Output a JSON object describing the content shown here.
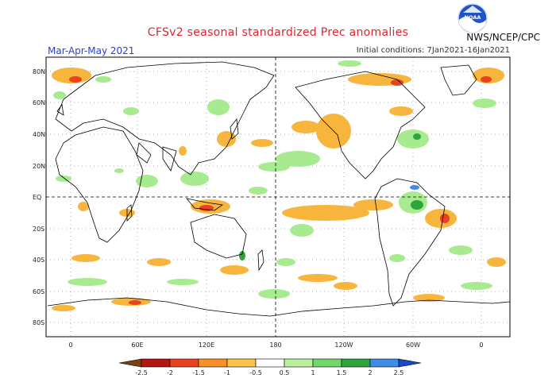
{
  "header": {
    "title": "CFSv2 seasonal standardized Prec anomalies",
    "season": "Mar-Apr-May 2021",
    "initial_conditions": "Initial conditions: 7Jan2021-16Jan2021",
    "agency": "NWS/NCEP/CPC",
    "logo_text": "NOAA"
  },
  "axes": {
    "lat_labels": [
      "80N",
      "60N",
      "40N",
      "20N",
      "EQ",
      "20S",
      "40S",
      "60S",
      "80S"
    ],
    "lon_labels": [
      "0",
      "60E",
      "120E",
      "180",
      "120W",
      "60W",
      "0"
    ]
  },
  "legend": {
    "ticks": [
      "-2.5",
      "-2",
      "-1.5",
      "-1",
      "-0.5",
      "0.5",
      "1",
      "1.5",
      "2",
      "2.5"
    ],
    "colors": [
      "#7a3f12",
      "#b2160f",
      "#e9421e",
      "#f98f25",
      "#fdc24a",
      "#ffffff",
      "#b9ef9d",
      "#72d66a",
      "#2ea53c",
      "#3d8de6",
      "#1a49c8"
    ]
  },
  "colors": {
    "dry_light": "#f7b53e",
    "dry_strong": "#e9421e",
    "wet_light": "#a8ea8f",
    "wet_strong": "#2ea53c",
    "title": "#e0242b",
    "season": "#2b3fd6"
  }
}
